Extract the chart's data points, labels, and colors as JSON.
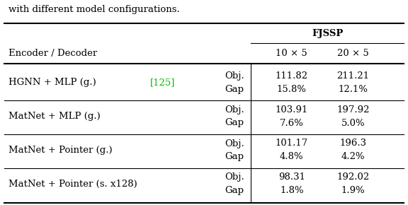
{
  "caption_text": "with different model configurations.",
  "header_group": "FJSSP",
  "col1_header": "Encoder / Decoder",
  "col2_header": "10 × 5",
  "col3_header": "20 × 5",
  "rows": [
    {
      "name": "HGNN + MLP (g.) [125]",
      "name_ref_color": "#00bb00",
      "name_ref": "125",
      "obj1": "111.82",
      "gap1": "15.8%",
      "obj2": "211.21",
      "gap2": "12.1%"
    },
    {
      "name": "MatNet + MLP (g.)",
      "name_ref_color": null,
      "name_ref": null,
      "obj1": "103.91",
      "gap1": "7.6%",
      "obj2": "197.92",
      "gap2": "5.0%"
    },
    {
      "name": "MatNet + Pointer (g.)",
      "name_ref_color": null,
      "name_ref": null,
      "obj1": "101.17",
      "gap1": "4.8%",
      "obj2": "196.3",
      "gap2": "4.2%"
    },
    {
      "name": "MatNet + Pointer (s. x128)",
      "name_ref_color": null,
      "name_ref": null,
      "obj1": "98.31",
      "gap1": "1.8%",
      "obj2": "192.02",
      "gap2": "1.9%"
    }
  ],
  "bg_color": "#ffffff",
  "text_color": "#000000",
  "font_size": 9.5
}
